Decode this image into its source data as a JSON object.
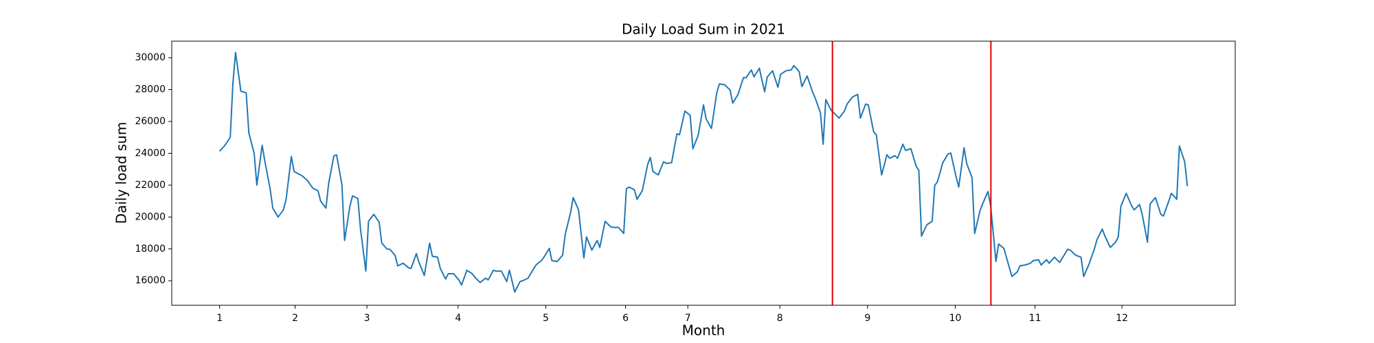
{
  "chart_data": {
    "type": "line",
    "title": "Daily Load Sum in 2021",
    "xlabel": "Month",
    "ylabel": "Daily load sum",
    "color": "#1f77b4",
    "x": [
      0,
      2,
      4,
      5,
      6,
      8,
      10,
      11,
      13,
      14,
      16,
      17,
      19,
      20,
      22,
      24,
      25,
      27,
      28,
      31,
      33,
      35,
      37,
      38,
      40,
      41,
      43,
      44,
      46,
      47,
      49,
      50,
      52,
      53,
      55,
      56,
      58,
      60,
      61,
      63,
      64,
      66,
      67,
      69,
      71,
      72,
      74,
      75,
      77,
      79,
      80,
      82,
      83,
      85,
      86,
      88,
      90,
      91,
      93,
      95,
      96,
      98,
      100,
      101,
      103,
      104,
      106,
      108,
      109,
      111,
      113,
      114,
      116,
      117,
      119,
      121,
      122,
      124,
      125,
      127,
      129,
      130,
      132,
      133,
      135,
      137,
      138,
      140,
      142,
      143,
      145,
      147,
      148,
      150,
      152,
      153,
      154,
      156,
      157,
      159,
      161,
      162,
      163,
      165,
      167,
      168,
      170,
      172,
      173,
      175,
      177,
      178,
      180,
      182,
      183,
      185,
      187,
      188,
      190,
      192,
      193,
      195,
      197,
      198,
      200,
      201,
      203,
      205,
      206,
      208,
      210,
      211,
      213,
      215,
      216,
      218,
      219,
      221,
      223,
      224,
      226,
      227,
      228,
      230,
      232,
      233,
      235,
      236,
      238,
      240,
      241,
      243,
      244,
      246,
      247,
      249,
      251,
      252,
      254,
      255,
      257,
      258,
      260,
      262,
      263,
      264,
      266,
      268,
      269,
      270,
      272,
      274,
      275,
      277,
      278,
      280,
      281,
      283,
      284,
      286,
      287,
      289,
      290,
      292,
      293,
      295,
      296,
      298,
      300,
      301,
      303,
      305,
      306,
      308,
      309,
      311,
      312,
      314,
      316,
      317,
      319,
      320,
      322,
      324,
      325,
      327,
      329,
      330,
      332,
      333,
      335,
      337,
      338,
      339,
      341,
      343,
      344,
      346,
      347,
      349,
      350,
      352,
      354,
      355,
      357,
      358,
      360,
      361,
      363,
      364
    ],
    "values": [
      24130,
      24500,
      25000,
      28400,
      30330,
      27900,
      27800,
      25280,
      24000,
      22000,
      24500,
      23520,
      21770,
      20560,
      20000,
      20450,
      21100,
      23800,
      22860,
      22590,
      22300,
      21820,
      21650,
      21000,
      20560,
      22100,
      23850,
      23900,
      22040,
      18530,
      20670,
      21330,
      21160,
      19240,
      16600,
      19730,
      20170,
      19680,
      18360,
      17980,
      17980,
      17600,
      16930,
      17100,
      16820,
      16770,
      17700,
      17150,
      16330,
      18360,
      17540,
      17480,
      16770,
      16110,
      16440,
      16440,
      16050,
      15730,
      16660,
      16440,
      16220,
      15890,
      16160,
      16050,
      16660,
      16600,
      16600,
      15950,
      16660,
      15290,
      15950,
      16000,
      16160,
      16440,
      16990,
      17260,
      17480,
      18030,
      17260,
      17210,
      17600,
      18910,
      20280,
      21220,
      20450,
      17430,
      18750,
      17920,
      18530,
      18090,
      19730,
      19400,
      19350,
      19350,
      18970,
      21770,
      21880,
      21710,
      21110,
      21660,
      23300,
      23740,
      22860,
      22640,
      23470,
      23360,
      23410,
      25220,
      25170,
      26650,
      26380,
      24290,
      25120,
      27040,
      26160,
      25560,
      27810,
      28360,
      28300,
      27970,
      27150,
      27700,
      28740,
      28740,
      29230,
      28800,
      29340,
      27860,
      28800,
      29180,
      28140,
      28960,
      29180,
      29230,
      29510,
      29120,
      28190,
      28850,
      27860,
      27480,
      26540,
      24570,
      27370,
      26710,
      26380,
      26210,
      26650,
      27090,
      27530,
      27700,
      26210,
      27090,
      27040,
      25340,
      25170,
      22640,
      23910,
      23690,
      23850,
      23690,
      24570,
      24180,
      24290,
      23190,
      22920,
      18800,
      19510,
      19730,
      21990,
      22210,
      23410,
      23960,
      24020,
      22540,
      21880,
      24350,
      23360,
      22480,
      18970,
      20390,
      20830,
      21600,
      20720,
      17210,
      18310,
      18030,
      17430,
      16270,
      16550,
      16930,
      16990,
      17100,
      17260,
      17320,
      16990,
      17320,
      17100,
      17480,
      17150,
      17430,
      17980,
      17920,
      17600,
      17480,
      16270,
      17040,
      17980,
      18580,
      19240,
      18800,
      18090,
      18420,
      18750,
      20670,
      21490,
      20720,
      20450,
      20780,
      20170,
      18420,
      20830,
      21220,
      20170,
      20060,
      21000,
      21490,
      21110,
      24460,
      23470,
      21930
    ],
    "xlim": [
      -18,
      382
    ],
    "ylim": [
      14460,
      31040
    ],
    "xticks": [
      {
        "value": 0,
        "label": "1"
      },
      {
        "value": 28.4,
        "label": "2"
      },
      {
        "value": 55.4,
        "label": "3"
      },
      {
        "value": 89.7,
        "label": "4"
      },
      {
        "value": 122.7,
        "label": "5"
      },
      {
        "value": 152.7,
        "label": "6"
      },
      {
        "value": 176.1,
        "label": "7"
      },
      {
        "value": 210.7,
        "label": "8"
      },
      {
        "value": 243.7,
        "label": "9"
      },
      {
        "value": 276.7,
        "label": "10"
      },
      {
        "value": 306.7,
        "label": "11"
      },
      {
        "value": 339.4,
        "label": "12"
      }
    ],
    "yticks": [
      16000,
      18000,
      20000,
      22000,
      24000,
      26000,
      28000,
      30000
    ],
    "vlines": {
      "x": [
        230.5,
        290.1
      ],
      "color": "#e00000"
    }
  }
}
